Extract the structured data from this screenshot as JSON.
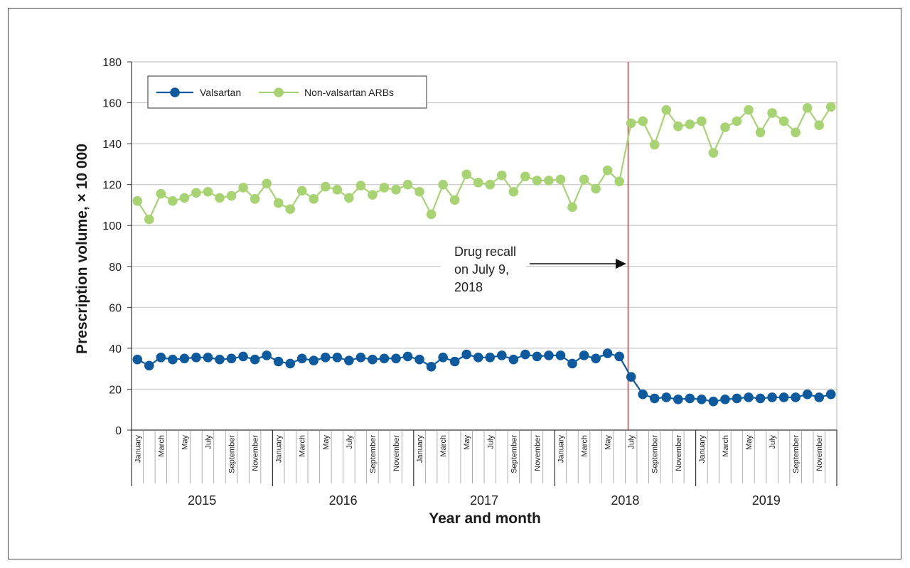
{
  "chart_data": {
    "type": "line",
    "xlabel": "Year and month",
    "ylabel": "Prescription volume, × 10 000",
    "ylim": [
      0,
      180
    ],
    "yticks": [
      0,
      20,
      40,
      60,
      80,
      100,
      120,
      140,
      160,
      180
    ],
    "grid": true,
    "legend_position": "top-left",
    "years": [
      "2015",
      "2016",
      "2017",
      "2018",
      "2019"
    ],
    "month_labels": [
      "January",
      "",
      "March",
      "",
      "May",
      "",
      "July",
      "",
      "September",
      "",
      "November",
      ""
    ],
    "series": [
      {
        "name": "Valsartan",
        "color": "#0e5a9e",
        "values": [
          34.5,
          31.5,
          35.5,
          34.5,
          35,
          35.5,
          35.5,
          34.5,
          35,
          36,
          34.5,
          36.5,
          33.5,
          32.5,
          35,
          34,
          35.5,
          35.5,
          34,
          35.5,
          34.5,
          35,
          35,
          36,
          34.5,
          31,
          35.5,
          33.5,
          37,
          35.5,
          35.5,
          36.5,
          34.5,
          37,
          36,
          36.5,
          36.5,
          32.5,
          36.5,
          35,
          37.5,
          36,
          26,
          17.5,
          15.5,
          16,
          15,
          15.5,
          15,
          14,
          15,
          15.5,
          16,
          15.5,
          16,
          16,
          16,
          17.5,
          16,
          17.5
        ]
      },
      {
        "name": "Non-valsartan ARBs",
        "color": "#a8d372",
        "values": [
          112,
          103,
          115.5,
          112,
          113.5,
          116,
          116.5,
          113.5,
          114.5,
          118.5,
          113,
          120.5,
          111,
          108,
          117,
          113,
          119,
          117.5,
          113.5,
          119.5,
          115,
          118.5,
          117.5,
          120,
          116.5,
          105.5,
          120,
          112.5,
          125,
          121,
          120,
          124.5,
          116.5,
          124,
          122,
          122,
          122.5,
          109,
          122.5,
          118,
          127,
          121.5,
          150,
          151,
          139.5,
          156.5,
          148.5,
          149.5,
          151,
          135.5,
          148,
          151,
          156.5,
          145.5,
          155,
          151,
          145.5,
          157.5,
          149,
          158
        ]
      }
    ],
    "event": {
      "index": 42,
      "color": "#e04040"
    },
    "annotation": [
      "Drug recall",
      "on July 9,",
      "2018"
    ]
  }
}
